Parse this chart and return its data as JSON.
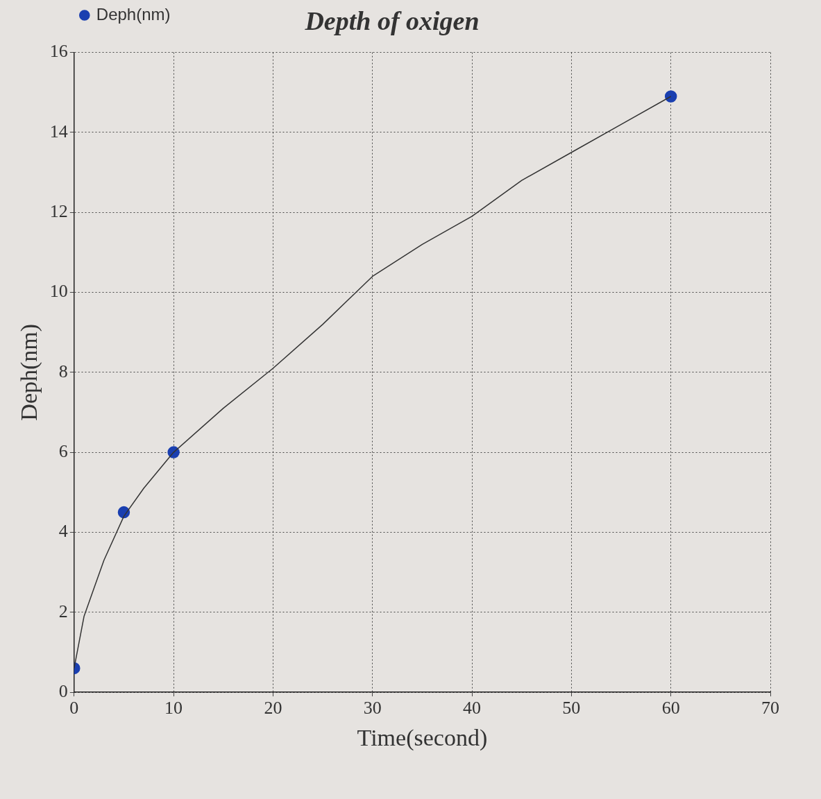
{
  "chart_data": {
    "type": "line",
    "title": "Depth of oxigen",
    "xlabel": "Time(second)",
    "ylabel": "Deph(nm)",
    "xlim": [
      0,
      70
    ],
    "ylim": [
      0,
      16
    ],
    "xticks": [
      0,
      10,
      20,
      30,
      40,
      50,
      60,
      70
    ],
    "yticks": [
      0,
      2,
      4,
      6,
      8,
      10,
      12,
      14,
      16
    ],
    "grid": true,
    "legend": "top left",
    "series": [
      {
        "type": "scatter",
        "name": "Deph(nm)",
        "color": "#1a3fb0",
        "marker": "circle",
        "x": [
          0,
          5,
          10,
          60
        ],
        "values": [
          0.6,
          4.5,
          6.0,
          14.9
        ]
      },
      {
        "color": "#333333",
        "marker": "none",
        "line_style": "solid",
        "x": [
          0,
          1,
          2,
          3,
          5,
          7,
          10,
          15,
          20,
          25,
          30,
          35,
          40,
          45,
          50,
          55,
          60
        ],
        "values": [
          0.6,
          1.9,
          2.6,
          3.3,
          4.4,
          5.1,
          6.0,
          7.1,
          8.1,
          9.2,
          10.4,
          11.2,
          11.9,
          12.8,
          13.5,
          14.2,
          14.9
        ]
      }
    ]
  }
}
